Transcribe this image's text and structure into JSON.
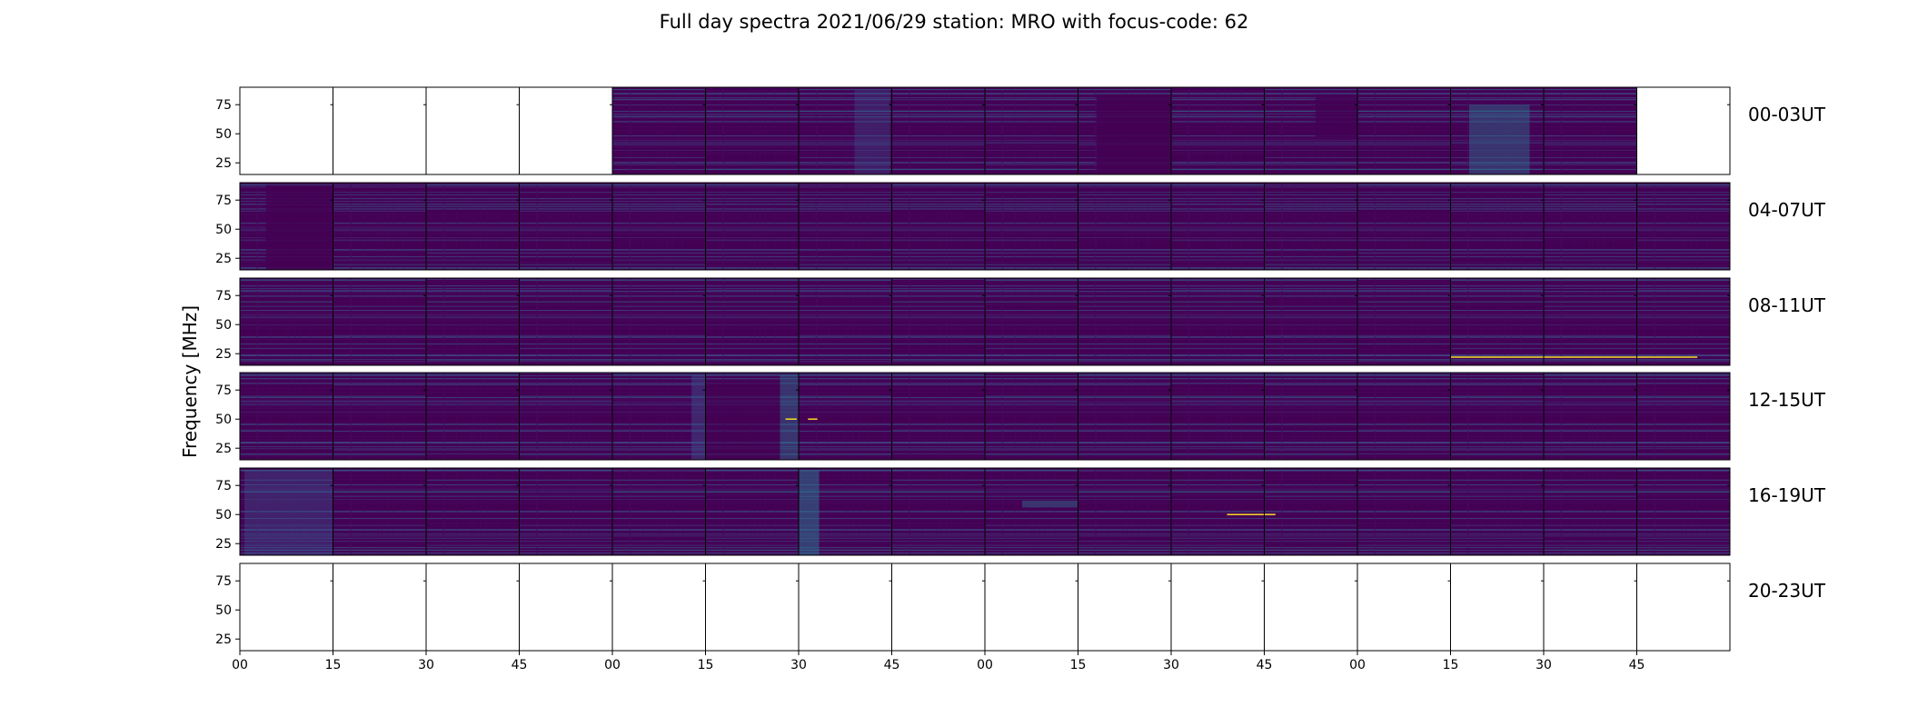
{
  "chart_data": {
    "type": "heatmap",
    "title": "Full day spectra 2021/06/29 station: MRO with focus-code: 62",
    "xlabel": "",
    "ylabel": "Frequency [MHz]",
    "x_tick_labels": [
      "00",
      "15",
      "30",
      "45",
      "00",
      "15",
      "30",
      "45",
      "00",
      "15",
      "30",
      "45",
      "00",
      "15",
      "30",
      "45"
    ],
    "y_tick_labels": [
      "75",
      "50",
      "25"
    ],
    "y_ticks_mhz": [
      75,
      50,
      25
    ],
    "ylim_mhz": [
      15,
      90
    ],
    "colormap": "viridis",
    "panels_per_row": 16,
    "panel_duration_min": 15,
    "rows": [
      {
        "label": "00-03UT",
        "has_data": [
          false,
          false,
          false,
          false,
          true,
          true,
          true,
          true,
          true,
          true,
          true,
          true,
          true,
          true,
          true,
          false
        ]
      },
      {
        "label": "04-07UT",
        "has_data": [
          true,
          true,
          true,
          true,
          true,
          true,
          true,
          true,
          true,
          true,
          true,
          true,
          true,
          true,
          true,
          true
        ]
      },
      {
        "label": "08-11UT",
        "has_data": [
          true,
          true,
          true,
          true,
          true,
          true,
          true,
          true,
          true,
          true,
          true,
          true,
          true,
          true,
          true,
          true
        ]
      },
      {
        "label": "12-15UT",
        "has_data": [
          true,
          true,
          true,
          true,
          true,
          true,
          true,
          true,
          true,
          true,
          true,
          true,
          true,
          true,
          true,
          true
        ]
      },
      {
        "label": "16-19UT",
        "has_data": [
          true,
          true,
          true,
          true,
          true,
          true,
          true,
          true,
          true,
          true,
          true,
          true,
          true,
          true,
          true,
          true
        ]
      },
      {
        "label": "20-23UT",
        "has_data": [
          false,
          false,
          false,
          false,
          false,
          false,
          false,
          false,
          false,
          false,
          false,
          false,
          false,
          false,
          false,
          false
        ]
      }
    ],
    "grid": false,
    "colors": {
      "background": "#440154",
      "background_alt": "#46085c",
      "line_mid": "#3b528b",
      "line_high": "#2c728e",
      "line_bright": "#21918c",
      "hot": "#fde725",
      "empty_panel": "#ffffff",
      "axis": "#000000"
    }
  }
}
